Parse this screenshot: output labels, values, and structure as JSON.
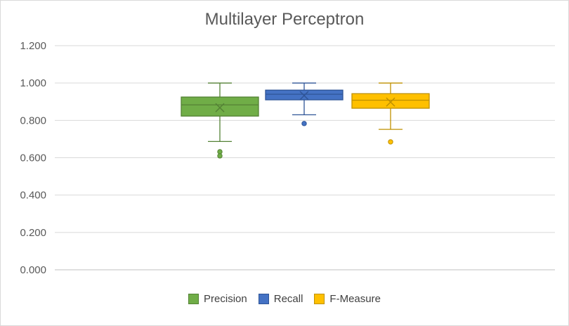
{
  "chart_data": {
    "type": "box",
    "title": "Multilayer Perceptron",
    "xlabel": "",
    "ylabel": "",
    "ylim": [
      0,
      1.2
    ],
    "yticks": [
      "0.000",
      "0.200",
      "0.400",
      "0.600",
      "0.800",
      "1.000",
      "1.200"
    ],
    "ytick_values": [
      0,
      0.2,
      0.4,
      0.6,
      0.8,
      1.0,
      1.2
    ],
    "grid": true,
    "legend_position": "bottom",
    "series": [
      {
        "name": "Precision",
        "color": "#70ad47",
        "edge": "#548235",
        "whisker_low": 0.687,
        "q1": 0.823,
        "median": 0.883,
        "q3": 0.925,
        "whisker_high": 1.0,
        "mean": 0.868,
        "outliers": [
          0.632,
          0.61
        ]
      },
      {
        "name": "Recall",
        "color": "#4472c4",
        "edge": "#2f5597",
        "whisker_low": 0.83,
        "q1": 0.91,
        "median": 0.94,
        "q3": 0.962,
        "whisker_high": 1.0,
        "mean": 0.933,
        "outliers": [
          0.783
        ]
      },
      {
        "name": "F-Measure",
        "color": "#ffc000",
        "edge": "#bf9000",
        "whisker_low": 0.752,
        "q1": 0.865,
        "median": 0.908,
        "q3": 0.943,
        "whisker_high": 1.0,
        "mean": 0.898,
        "outliers": [
          0.685
        ]
      }
    ]
  }
}
